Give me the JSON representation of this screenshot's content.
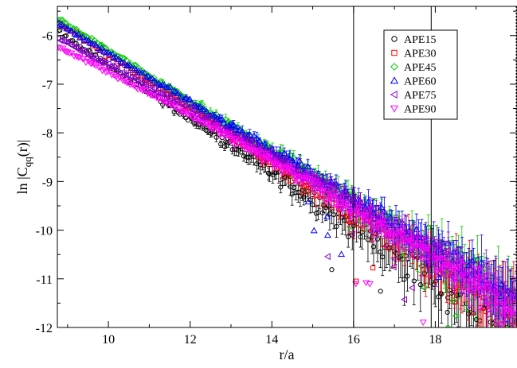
{
  "chart_data": {
    "type": "scatter",
    "xlabel": "r/a",
    "ylabel_main": "ln |C",
    "ylabel_sub": "qq",
    "ylabel_tail": "(r)|",
    "xlim": [
      8.75,
      20.0
    ],
    "ylim": [
      -12,
      -5.4
    ],
    "xticks": [
      10,
      12,
      14,
      16,
      18
    ],
    "yticks": [
      -6,
      -7,
      -8,
      -9,
      -10,
      -11,
      -12
    ],
    "legend_position": "top-right",
    "grid": false,
    "series": [
      {
        "name": "APE15",
        "marker": "circle",
        "color": "#000000",
        "y_start": -5.92,
        "slope": -0.55,
        "curve": 0.0,
        "jitter": 0.06,
        "noise_growth": 0.55
      },
      {
        "name": "APE30",
        "marker": "square",
        "color": "#ff0000",
        "y_start": -5.72,
        "slope": -0.54,
        "curve": 0.0,
        "jitter": 0.045,
        "noise_growth": 0.45
      },
      {
        "name": "APE45",
        "marker": "diamond",
        "color": "#00cc00",
        "y_start": -5.65,
        "slope": -0.52,
        "curve": 0.0,
        "jitter": 0.04,
        "noise_growth": 0.38
      },
      {
        "name": "APE60",
        "marker": "triangle-up",
        "color": "#0000ff",
        "y_start": -5.74,
        "slope": -0.5,
        "curve": 0.0,
        "jitter": 0.035,
        "noise_growth": 0.33
      },
      {
        "name": "APE75",
        "marker": "triangle-left",
        "color": "#8800cc",
        "y_start": -6.05,
        "slope": -0.44,
        "curve": -0.004,
        "jitter": 0.03,
        "noise_growth": 0.3
      },
      {
        "name": "APE90",
        "marker": "triangle-down",
        "color": "#ff00ff",
        "y_start": -6.22,
        "slope": -0.42,
        "curve": -0.006,
        "jitter": 0.03,
        "noise_growth": 0.28
      }
    ],
    "vertical_lines_x": [
      16.0,
      17.9
    ]
  }
}
